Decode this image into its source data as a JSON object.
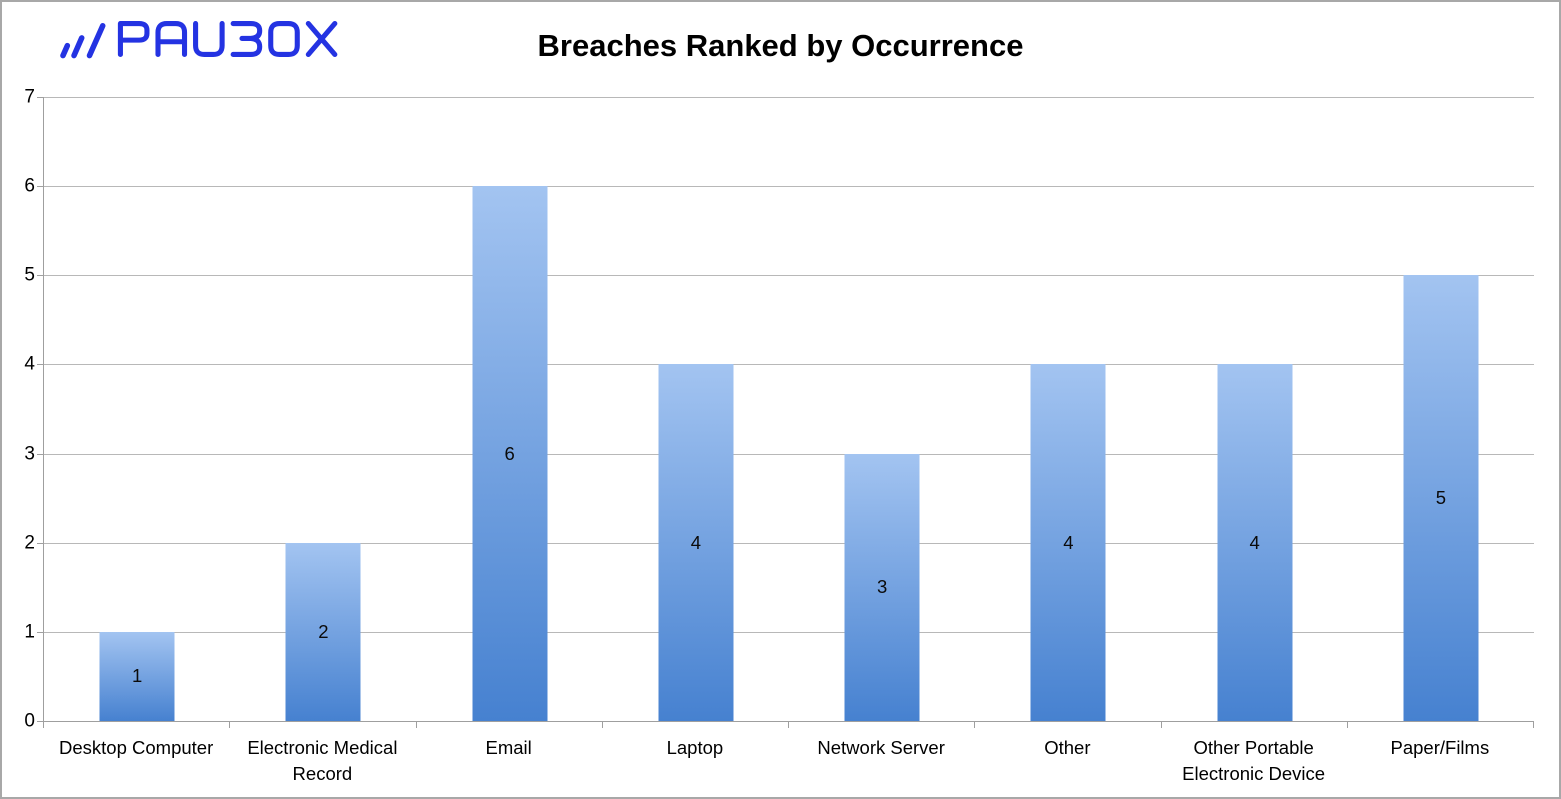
{
  "header": {
    "logo_text": "PAUBOX",
    "logo_color": "#2433e2"
  },
  "chart_data": {
    "type": "bar",
    "title": "Breaches Ranked by Occurrence",
    "categories": [
      "Desktop Computer",
      "Electronic Medical Record",
      "Email",
      "Laptop",
      "Network Server",
      "Other",
      "Other Portable Electronic Device",
      "Paper/Films"
    ],
    "values": [
      1,
      2,
      6,
      4,
      3,
      4,
      4,
      5
    ],
    "value_labels_shown": true,
    "xlabel": "",
    "ylabel": "",
    "ylim": [
      0,
      7
    ],
    "y_ticks": [
      0,
      1,
      2,
      3,
      4,
      5,
      6,
      7
    ],
    "grid": true,
    "legend": "none",
    "colors": {
      "bar_gradient_top": "#a3c4f1",
      "bar_gradient_bottom": "#4681d0",
      "gridline": "#b8b8b8",
      "axis": "#9f9f9f",
      "text": "#000000",
      "frame_border": "#a8a8a8",
      "background": "#ffffff"
    }
  }
}
